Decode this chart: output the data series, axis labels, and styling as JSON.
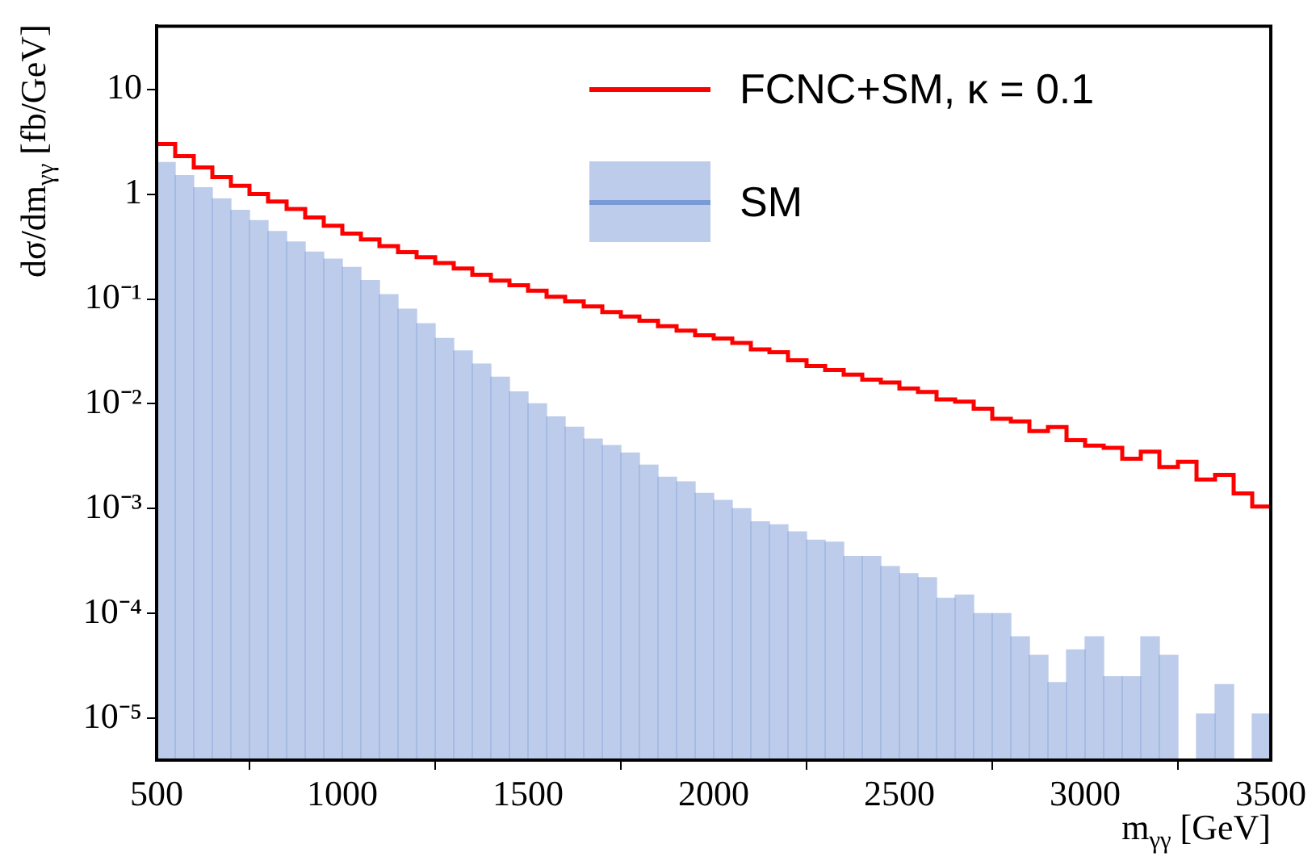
{
  "chart_data": {
    "type": "histogram",
    "xlabel": "m$_{γγ}$ [GeV]",
    "ylabel": "dσ/dm$_{γγ}$ [fb/GeV]",
    "bins": [
      500,
      550,
      600,
      650,
      700,
      750,
      800,
      850,
      900,
      950,
      1000,
      1050,
      1100,
      1150,
      1200,
      1250,
      1300,
      1350,
      1400,
      1450,
      1500,
      1550,
      1600,
      1650,
      1700,
      1750,
      1800,
      1850,
      1900,
      1950,
      2000,
      2050,
      2100,
      2150,
      2200,
      2250,
      2300,
      2350,
      2400,
      2450,
      2500,
      2550,
      2600,
      2650,
      2700,
      2750,
      2800,
      2850,
      2900,
      2950,
      3000,
      3050,
      3100,
      3150,
      3200,
      3250,
      3300,
      3350,
      3400,
      3450,
      3500
    ],
    "series": [
      {
        "name": "FCNC+SM, κ = 0.1",
        "color": "#ff0000",
        "values": [
          3.0,
          2.3,
          1.8,
          1.45,
          1.2,
          1.0,
          0.85,
          0.72,
          0.6,
          0.5,
          0.42,
          0.37,
          0.32,
          0.28,
          0.25,
          0.22,
          0.195,
          0.17,
          0.15,
          0.135,
          0.12,
          0.105,
          0.095,
          0.085,
          0.075,
          0.068,
          0.062,
          0.055,
          0.05,
          0.045,
          0.042,
          0.038,
          0.033,
          0.031,
          0.026,
          0.023,
          0.021,
          0.019,
          0.017,
          0.016,
          0.014,
          0.013,
          0.011,
          0.0105,
          0.009,
          0.0072,
          0.0068,
          0.0055,
          0.006,
          0.0045,
          0.004,
          0.0038,
          0.003,
          0.0035,
          0.0025,
          0.0028,
          0.0019,
          0.0021,
          0.0014,
          0.00105
        ]
      },
      {
        "name": "SM",
        "color": "#7a9ad6",
        "values": [
          2.0,
          1.5,
          1.15,
          0.9,
          0.7,
          0.56,
          0.44,
          0.35,
          0.28,
          0.24,
          0.2,
          0.15,
          0.11,
          0.08,
          0.058,
          0.042,
          0.032,
          0.024,
          0.018,
          0.013,
          0.01,
          0.0075,
          0.006,
          0.0046,
          0.004,
          0.0034,
          0.0026,
          0.002,
          0.0018,
          0.0014,
          0.0012,
          0.001,
          0.00075,
          0.0007,
          0.0006,
          0.0005,
          0.00048,
          0.00035,
          0.00035,
          0.00028,
          0.00024,
          0.00022,
          0.00014,
          0.00015,
          0.0001,
          0.0001,
          6e-05,
          4e-05,
          2.2e-05,
          4.5e-05,
          6e-05,
          2.5e-05,
          2.5e-05,
          6e-05,
          4e-05,
          null,
          1.1e-05,
          2.1e-05,
          null,
          1.1e-05
        ]
      }
    ],
    "xlim": [
      500,
      3500
    ],
    "xticks": [
      500,
      1000,
      1500,
      2000,
      2500,
      3000,
      3500
    ],
    "ylim": [
      4e-06,
      40
    ],
    "log": true,
    "yticks": [
      {
        "value": 1e-05,
        "label": "10⁻⁵"
      },
      {
        "value": 0.0001,
        "label": "10⁻⁴"
      },
      {
        "value": 0.001,
        "label": "10⁻³"
      },
      {
        "value": 0.01,
        "label": "10⁻²"
      },
      {
        "value": 0.1,
        "label": "10⁻¹"
      },
      1,
      10
    ],
    "grid": false,
    "legend": "top right"
  }
}
